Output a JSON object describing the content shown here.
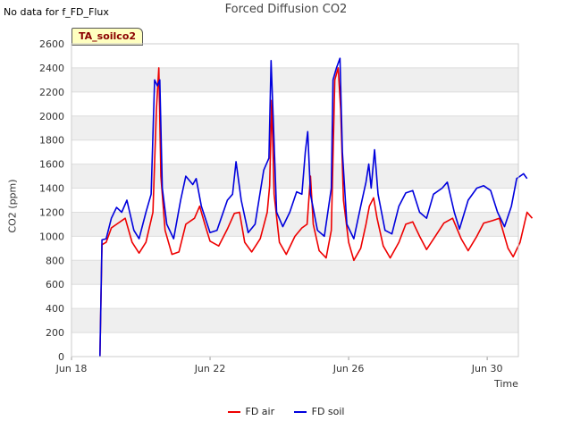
{
  "notice": "No data for f_FD_Flux",
  "badge": "TA_soilco2",
  "chart_data": {
    "type": "line",
    "title": "Forced Diffusion CO2",
    "xlabel": "Time",
    "ylabel": "CO2 (ppm)",
    "ylim": [
      0,
      2600
    ],
    "xlim_days": [
      0,
      12.9
    ],
    "yticks": [
      0,
      200,
      400,
      600,
      800,
      1000,
      1200,
      1400,
      1600,
      1800,
      2000,
      2200,
      2400,
      2600
    ],
    "xticks": [
      {
        "day": 0,
        "label": "Jun 18"
      },
      {
        "day": 4,
        "label": "Jun 22"
      },
      {
        "day": 8,
        "label": "Jun 26"
      },
      {
        "day": 12,
        "label": "Jun 30"
      }
    ],
    "series": [
      {
        "name": "FD air",
        "color": "#ee0000",
        "points": [
          [
            0.82,
            0
          ],
          [
            0.88,
            930
          ],
          [
            1.0,
            950
          ],
          [
            1.15,
            1070
          ],
          [
            1.35,
            1110
          ],
          [
            1.55,
            1150
          ],
          [
            1.75,
            950
          ],
          [
            1.95,
            860
          ],
          [
            2.15,
            950
          ],
          [
            2.35,
            1200
          ],
          [
            2.45,
            2050
          ],
          [
            2.52,
            2400
          ],
          [
            2.58,
            1500
          ],
          [
            2.7,
            1050
          ],
          [
            2.9,
            850
          ],
          [
            3.1,
            870
          ],
          [
            3.3,
            1100
          ],
          [
            3.55,
            1150
          ],
          [
            3.7,
            1250
          ],
          [
            3.85,
            1100
          ],
          [
            4.0,
            960
          ],
          [
            4.25,
            920
          ],
          [
            4.5,
            1060
          ],
          [
            4.7,
            1190
          ],
          [
            4.85,
            1200
          ],
          [
            5.0,
            950
          ],
          [
            5.2,
            870
          ],
          [
            5.45,
            980
          ],
          [
            5.65,
            1200
          ],
          [
            5.72,
            1420
          ],
          [
            5.78,
            2130
          ],
          [
            5.85,
            1350
          ],
          [
            6.0,
            950
          ],
          [
            6.2,
            850
          ],
          [
            6.45,
            1000
          ],
          [
            6.65,
            1070
          ],
          [
            6.8,
            1100
          ],
          [
            6.9,
            1500
          ],
          [
            6.98,
            1100
          ],
          [
            7.15,
            880
          ],
          [
            7.35,
            820
          ],
          [
            7.5,
            1050
          ],
          [
            7.6,
            2300
          ],
          [
            7.7,
            2400
          ],
          [
            7.77,
            2050
          ],
          [
            7.85,
            1300
          ],
          [
            8.0,
            950
          ],
          [
            8.15,
            800
          ],
          [
            8.35,
            900
          ],
          [
            8.5,
            1100
          ],
          [
            8.6,
            1250
          ],
          [
            8.72,
            1320
          ],
          [
            8.82,
            1150
          ],
          [
            9.0,
            920
          ],
          [
            9.2,
            820
          ],
          [
            9.45,
            950
          ],
          [
            9.65,
            1100
          ],
          [
            9.85,
            1120
          ],
          [
            10.05,
            1000
          ],
          [
            10.25,
            890
          ],
          [
            10.5,
            1000
          ],
          [
            10.75,
            1110
          ],
          [
            11.0,
            1150
          ],
          [
            11.25,
            980
          ],
          [
            11.45,
            880
          ],
          [
            11.7,
            1000
          ],
          [
            11.9,
            1110
          ],
          [
            12.15,
            1130
          ],
          [
            12.35,
            1150
          ],
          [
            12.6,
            900
          ],
          [
            12.75,
            830
          ],
          [
            12.95,
            950
          ],
          [
            13.15,
            1200
          ],
          [
            13.3,
            1150
          ]
        ]
      },
      {
        "name": "FD soil",
        "color": "#0000dd",
        "points": [
          [
            0.82,
            0
          ],
          [
            0.88,
            970
          ],
          [
            1.0,
            980
          ],
          [
            1.15,
            1150
          ],
          [
            1.3,
            1240
          ],
          [
            1.45,
            1200
          ],
          [
            1.6,
            1300
          ],
          [
            1.8,
            1050
          ],
          [
            1.95,
            980
          ],
          [
            2.15,
            1200
          ],
          [
            2.3,
            1350
          ],
          [
            2.4,
            2300
          ],
          [
            2.48,
            2250
          ],
          [
            2.55,
            2300
          ],
          [
            2.62,
            1400
          ],
          [
            2.75,
            1100
          ],
          [
            2.95,
            980
          ],
          [
            3.15,
            1300
          ],
          [
            3.3,
            1500
          ],
          [
            3.5,
            1430
          ],
          [
            3.6,
            1480
          ],
          [
            3.75,
            1250
          ],
          [
            4.0,
            1030
          ],
          [
            4.2,
            1050
          ],
          [
            4.5,
            1300
          ],
          [
            4.65,
            1350
          ],
          [
            4.75,
            1620
          ],
          [
            4.9,
            1300
          ],
          [
            5.1,
            1030
          ],
          [
            5.3,
            1100
          ],
          [
            5.55,
            1550
          ],
          [
            5.7,
            1650
          ],
          [
            5.76,
            2460
          ],
          [
            5.82,
            2000
          ],
          [
            5.92,
            1200
          ],
          [
            6.1,
            1080
          ],
          [
            6.3,
            1200
          ],
          [
            6.5,
            1370
          ],
          [
            6.65,
            1350
          ],
          [
            6.75,
            1700
          ],
          [
            6.82,
            1870
          ],
          [
            6.9,
            1350
          ],
          [
            7.1,
            1050
          ],
          [
            7.3,
            1000
          ],
          [
            7.5,
            1400
          ],
          [
            7.55,
            2300
          ],
          [
            7.65,
            2400
          ],
          [
            7.75,
            2480
          ],
          [
            7.82,
            1700
          ],
          [
            7.95,
            1100
          ],
          [
            8.15,
            980
          ],
          [
            8.35,
            1250
          ],
          [
            8.5,
            1450
          ],
          [
            8.58,
            1600
          ],
          [
            8.65,
            1400
          ],
          [
            8.75,
            1720
          ],
          [
            8.85,
            1350
          ],
          [
            9.05,
            1050
          ],
          [
            9.25,
            1020
          ],
          [
            9.45,
            1250
          ],
          [
            9.65,
            1360
          ],
          [
            9.85,
            1380
          ],
          [
            10.05,
            1200
          ],
          [
            10.25,
            1150
          ],
          [
            10.45,
            1350
          ],
          [
            10.7,
            1400
          ],
          [
            10.85,
            1450
          ],
          [
            11.05,
            1200
          ],
          [
            11.2,
            1060
          ],
          [
            11.45,
            1300
          ],
          [
            11.7,
            1400
          ],
          [
            11.9,
            1420
          ],
          [
            12.1,
            1380
          ],
          [
            12.3,
            1200
          ],
          [
            12.5,
            1080
          ],
          [
            12.7,
            1250
          ],
          [
            12.85,
            1480
          ],
          [
            13.05,
            1520
          ],
          [
            13.15,
            1480
          ]
        ]
      }
    ]
  }
}
